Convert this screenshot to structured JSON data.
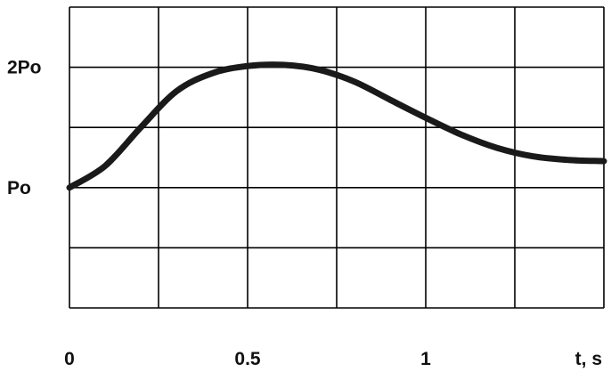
{
  "chart_data": {
    "type": "line",
    "title": "",
    "xlabel": "t, s",
    "ylabel": "",
    "xlim": [
      0,
      1.5
    ],
    "ylim": [
      0,
      2.5
    ],
    "grid": true,
    "x_ticks": [
      {
        "value": 0,
        "label": "0"
      },
      {
        "value": 0.5,
        "label": "0.5"
      },
      {
        "value": 1,
        "label": "1"
      }
    ],
    "y_ticks": [
      {
        "value": 1,
        "label": "Po"
      },
      {
        "value": 2,
        "label": "2Po"
      }
    ],
    "series": [
      {
        "x": [
          0,
          0.1,
          0.2,
          0.3,
          0.4,
          0.5,
          0.6,
          0.7,
          0.8,
          0.9,
          1.0,
          1.1,
          1.2,
          1.3,
          1.4,
          1.5
        ],
        "y": [
          1.0,
          1.18,
          1.5,
          1.8,
          1.95,
          2.01,
          2.02,
          1.98,
          1.88,
          1.73,
          1.58,
          1.44,
          1.33,
          1.26,
          1.23,
          1.22
        ]
      }
    ],
    "colors": {
      "line": "#1a1a1a",
      "grid": "#000000",
      "text": "#111111"
    }
  }
}
